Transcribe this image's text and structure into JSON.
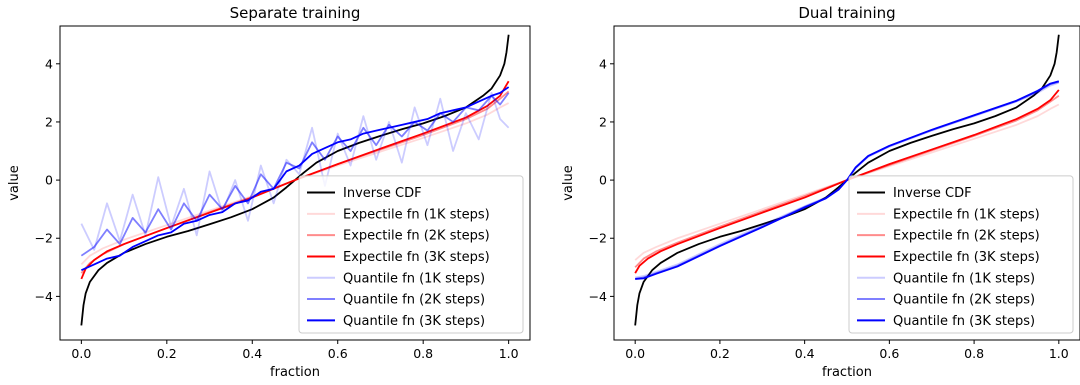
{
  "chart_data": [
    {
      "type": "line",
      "title": "Separate training",
      "xlabel": "fraction",
      "ylabel": "value",
      "xlim": [
        -0.05,
        1.05
      ],
      "ylim": [
        -5.5,
        5.3
      ],
      "xticks": [
        0.0,
        0.2,
        0.4,
        0.6,
        0.8,
        1.0
      ],
      "xtick_labels": [
        "0.0",
        "0.2",
        "0.4",
        "0.6",
        "0.8",
        "1.0"
      ],
      "yticks": [
        -4,
        -2,
        0,
        2,
        4
      ],
      "ytick_labels": [
        "−4",
        "−2",
        "0",
        "2",
        "4"
      ],
      "legend_position": "lower-right",
      "series": [
        {
          "name": "Inverse CDF",
          "color": "#000000",
          "opacity": 1.0,
          "x": [
            0.0,
            0.005,
            0.01,
            0.02,
            0.04,
            0.06,
            0.1,
            0.15,
            0.2,
            0.25,
            0.3,
            0.35,
            0.4,
            0.45,
            0.48,
            0.5,
            0.52,
            0.55,
            0.6,
            0.65,
            0.7,
            0.75,
            0.8,
            0.85,
            0.9,
            0.94,
            0.96,
            0.98,
            0.99,
            0.995,
            1.0
          ],
          "y": [
            -5.0,
            -4.3,
            -3.9,
            -3.5,
            -3.1,
            -2.85,
            -2.5,
            -2.2,
            -1.95,
            -1.75,
            -1.52,
            -1.28,
            -1.0,
            -0.6,
            -0.25,
            0.0,
            0.25,
            0.6,
            1.0,
            1.28,
            1.52,
            1.75,
            1.95,
            2.2,
            2.5,
            2.9,
            3.15,
            3.6,
            4.0,
            4.4,
            5.0
          ]
        },
        {
          "name": "Expectile fn (1K steps)",
          "color": "#ff0000",
          "opacity": 0.15,
          "x": [
            0.0,
            0.02,
            0.05,
            0.1,
            0.2,
            0.3,
            0.4,
            0.5,
            0.6,
            0.7,
            0.8,
            0.9,
            0.95,
            0.98,
            1.0
          ],
          "y": [
            -2.9,
            -2.6,
            -2.35,
            -2.05,
            -1.55,
            -1.05,
            -0.55,
            0.0,
            0.5,
            0.98,
            1.45,
            1.95,
            2.25,
            2.5,
            2.65
          ]
        },
        {
          "name": "Expectile fn (2K steps)",
          "color": "#ff0000",
          "opacity": 0.45,
          "x": [
            0.0,
            0.02,
            0.05,
            0.1,
            0.2,
            0.3,
            0.4,
            0.5,
            0.6,
            0.7,
            0.8,
            0.9,
            0.95,
            0.98,
            1.0
          ],
          "y": [
            -3.2,
            -2.85,
            -2.55,
            -2.2,
            -1.65,
            -1.1,
            -0.58,
            0.0,
            0.55,
            1.05,
            1.55,
            2.1,
            2.45,
            2.8,
            3.05
          ]
        },
        {
          "name": "Expectile fn (3K steps)",
          "color": "#ff0000",
          "opacity": 1.0,
          "x": [
            0.0,
            0.01,
            0.03,
            0.06,
            0.1,
            0.2,
            0.3,
            0.4,
            0.5,
            0.6,
            0.7,
            0.8,
            0.9,
            0.95,
            0.98,
            1.0
          ],
          "y": [
            -3.4,
            -3.05,
            -2.75,
            -2.45,
            -2.2,
            -1.65,
            -1.12,
            -0.6,
            0.0,
            0.55,
            1.08,
            1.6,
            2.15,
            2.55,
            2.9,
            3.4
          ]
        },
        {
          "name": "Quantile fn (1K steps)",
          "color": "#0000ff",
          "opacity": 0.2,
          "x": [
            0.0,
            0.03,
            0.06,
            0.09,
            0.12,
            0.15,
            0.18,
            0.21,
            0.24,
            0.27,
            0.3,
            0.33,
            0.36,
            0.39,
            0.42,
            0.45,
            0.48,
            0.51,
            0.54,
            0.57,
            0.6,
            0.63,
            0.66,
            0.69,
            0.72,
            0.75,
            0.78,
            0.81,
            0.84,
            0.87,
            0.9,
            0.93,
            0.96,
            0.98,
            1.0
          ],
          "y": [
            -1.5,
            -2.4,
            -0.8,
            -2.1,
            -0.5,
            -1.9,
            0.1,
            -1.6,
            -0.3,
            -1.9,
            0.3,
            -1.1,
            0.0,
            -1.4,
            0.5,
            -0.8,
            0.7,
            0.2,
            1.8,
            -0.2,
            1.6,
            0.5,
            2.2,
            0.7,
            2.0,
            0.6,
            2.5,
            1.2,
            2.8,
            1.0,
            2.3,
            1.4,
            3.0,
            2.1,
            1.8
          ]
        },
        {
          "name": "Quantile fn (2K steps)",
          "color": "#0000ff",
          "opacity": 0.5,
          "x": [
            0.0,
            0.03,
            0.06,
            0.09,
            0.12,
            0.15,
            0.18,
            0.21,
            0.24,
            0.27,
            0.3,
            0.33,
            0.36,
            0.39,
            0.42,
            0.45,
            0.48,
            0.51,
            0.54,
            0.57,
            0.6,
            0.63,
            0.66,
            0.69,
            0.72,
            0.75,
            0.78,
            0.81,
            0.84,
            0.87,
            0.9,
            0.93,
            0.96,
            0.98,
            1.0
          ],
          "y": [
            -2.6,
            -2.3,
            -1.7,
            -2.2,
            -1.3,
            -1.8,
            -1.0,
            -1.7,
            -0.8,
            -1.4,
            -0.5,
            -1.0,
            -0.2,
            -0.8,
            0.2,
            -0.3,
            0.6,
            0.4,
            1.3,
            0.7,
            1.5,
            1.0,
            1.8,
            1.2,
            1.9,
            1.5,
            2.0,
            1.7,
            2.3,
            2.0,
            2.5,
            2.4,
            2.9,
            2.6,
            3.0
          ]
        },
        {
          "name": "Quantile fn (3K steps)",
          "color": "#0000ff",
          "opacity": 1.0,
          "x": [
            0.0,
            0.03,
            0.06,
            0.09,
            0.12,
            0.15,
            0.18,
            0.21,
            0.24,
            0.27,
            0.3,
            0.33,
            0.36,
            0.39,
            0.42,
            0.45,
            0.48,
            0.51,
            0.54,
            0.57,
            0.6,
            0.63,
            0.66,
            0.69,
            0.72,
            0.75,
            0.78,
            0.81,
            0.84,
            0.87,
            0.9,
            0.93,
            0.96,
            0.98,
            1.0
          ],
          "y": [
            -3.1,
            -2.9,
            -2.7,
            -2.6,
            -2.3,
            -2.1,
            -1.9,
            -1.8,
            -1.5,
            -1.4,
            -1.2,
            -1.1,
            -0.8,
            -0.7,
            -0.4,
            -0.3,
            0.3,
            0.5,
            0.9,
            1.1,
            1.3,
            1.4,
            1.6,
            1.7,
            1.8,
            1.9,
            2.0,
            2.1,
            2.3,
            2.4,
            2.5,
            2.7,
            2.9,
            3.0,
            3.2
          ]
        }
      ]
    },
    {
      "type": "line",
      "title": "Dual training",
      "xlabel": "fraction",
      "ylabel": "value",
      "xlim": [
        -0.05,
        1.05
      ],
      "ylim": [
        -5.5,
        5.3
      ],
      "xticks": [
        0.0,
        0.2,
        0.4,
        0.6,
        0.8,
        1.0
      ],
      "xtick_labels": [
        "0.0",
        "0.2",
        "0.4",
        "0.6",
        "0.8",
        "1.0"
      ],
      "yticks": [
        -4,
        -2,
        0,
        2,
        4
      ],
      "ytick_labels": [
        "−4",
        "−2",
        "0",
        "2",
        "4"
      ],
      "legend_position": "lower-right",
      "series": [
        {
          "name": "Inverse CDF",
          "color": "#000000",
          "opacity": 1.0,
          "x": [
            0.0,
            0.005,
            0.01,
            0.02,
            0.04,
            0.06,
            0.1,
            0.15,
            0.2,
            0.25,
            0.3,
            0.35,
            0.4,
            0.45,
            0.48,
            0.5,
            0.52,
            0.55,
            0.6,
            0.65,
            0.7,
            0.75,
            0.8,
            0.85,
            0.9,
            0.94,
            0.96,
            0.98,
            0.99,
            0.995,
            1.0
          ],
          "y": [
            -5.0,
            -4.3,
            -3.9,
            -3.5,
            -3.1,
            -2.85,
            -2.5,
            -2.2,
            -1.95,
            -1.75,
            -1.52,
            -1.28,
            -1.0,
            -0.6,
            -0.25,
            0.0,
            0.25,
            0.6,
            1.0,
            1.28,
            1.52,
            1.75,
            1.95,
            2.2,
            2.5,
            2.9,
            3.15,
            3.6,
            4.0,
            4.4,
            5.0
          ]
        },
        {
          "name": "Expectile fn (1K steps)",
          "color": "#ff0000",
          "opacity": 0.15,
          "x": [
            0.0,
            0.02,
            0.05,
            0.1,
            0.2,
            0.3,
            0.4,
            0.5,
            0.6,
            0.7,
            0.8,
            0.9,
            0.95,
            0.98,
            1.0
          ],
          "y": [
            -2.75,
            -2.5,
            -2.3,
            -2.0,
            -1.5,
            -1.0,
            -0.5,
            0.0,
            0.48,
            0.95,
            1.42,
            1.9,
            2.2,
            2.45,
            2.6
          ]
        },
        {
          "name": "Expectile fn (2K steps)",
          "color": "#ff0000",
          "opacity": 0.45,
          "x": [
            0.0,
            0.02,
            0.05,
            0.1,
            0.2,
            0.3,
            0.4,
            0.5,
            0.6,
            0.7,
            0.8,
            0.9,
            0.95,
            0.98,
            1.0
          ],
          "y": [
            -3.0,
            -2.7,
            -2.45,
            -2.15,
            -1.6,
            -1.07,
            -0.55,
            0.0,
            0.52,
            1.02,
            1.52,
            2.05,
            2.4,
            2.7,
            2.9
          ]
        },
        {
          "name": "Expectile fn (3K steps)",
          "color": "#ff0000",
          "opacity": 1.0,
          "x": [
            0.0,
            0.01,
            0.03,
            0.06,
            0.1,
            0.2,
            0.3,
            0.4,
            0.5,
            0.6,
            0.7,
            0.8,
            0.9,
            0.95,
            0.98,
            1.0
          ],
          "y": [
            -3.2,
            -2.95,
            -2.7,
            -2.45,
            -2.2,
            -1.65,
            -1.12,
            -0.6,
            0.0,
            0.55,
            1.05,
            1.55,
            2.1,
            2.45,
            2.75,
            3.1
          ]
        },
        {
          "name": "Quantile fn (1K steps)",
          "color": "#0000ff",
          "opacity": 0.2,
          "x": [
            0.0,
            0.02,
            0.05,
            0.1,
            0.2,
            0.3,
            0.4,
            0.45,
            0.48,
            0.5,
            0.52,
            0.55,
            0.6,
            0.7,
            0.8,
            0.9,
            0.95,
            0.98,
            1.0
          ],
          "y": [
            -3.35,
            -3.3,
            -3.15,
            -2.9,
            -2.2,
            -1.55,
            -0.9,
            -0.6,
            -0.3,
            0.0,
            0.4,
            0.8,
            1.15,
            1.7,
            2.2,
            2.7,
            3.0,
            3.25,
            3.35
          ]
        },
        {
          "name": "Quantile fn (2K steps)",
          "color": "#0000ff",
          "opacity": 0.5,
          "x": [
            0.0,
            0.02,
            0.05,
            0.1,
            0.2,
            0.3,
            0.4,
            0.45,
            0.48,
            0.5,
            0.52,
            0.55,
            0.6,
            0.7,
            0.8,
            0.9,
            0.95,
            0.98,
            1.0
          ],
          "y": [
            -3.4,
            -3.35,
            -3.2,
            -2.95,
            -2.25,
            -1.6,
            -0.92,
            -0.62,
            -0.32,
            0.0,
            0.42,
            0.82,
            1.17,
            1.72,
            2.22,
            2.72,
            3.05,
            3.3,
            3.38
          ]
        },
        {
          "name": "Quantile fn (3K steps)",
          "color": "#0000ff",
          "opacity": 1.0,
          "x": [
            0.0,
            0.02,
            0.05,
            0.1,
            0.2,
            0.3,
            0.4,
            0.45,
            0.48,
            0.5,
            0.52,
            0.55,
            0.6,
            0.7,
            0.8,
            0.9,
            0.95,
            0.98,
            1.0
          ],
          "y": [
            -3.4,
            -3.38,
            -3.22,
            -2.97,
            -2.27,
            -1.62,
            -0.94,
            -0.63,
            -0.33,
            0.0,
            0.43,
            0.83,
            1.18,
            1.73,
            2.23,
            2.73,
            3.07,
            3.32,
            3.4
          ]
        }
      ]
    }
  ]
}
